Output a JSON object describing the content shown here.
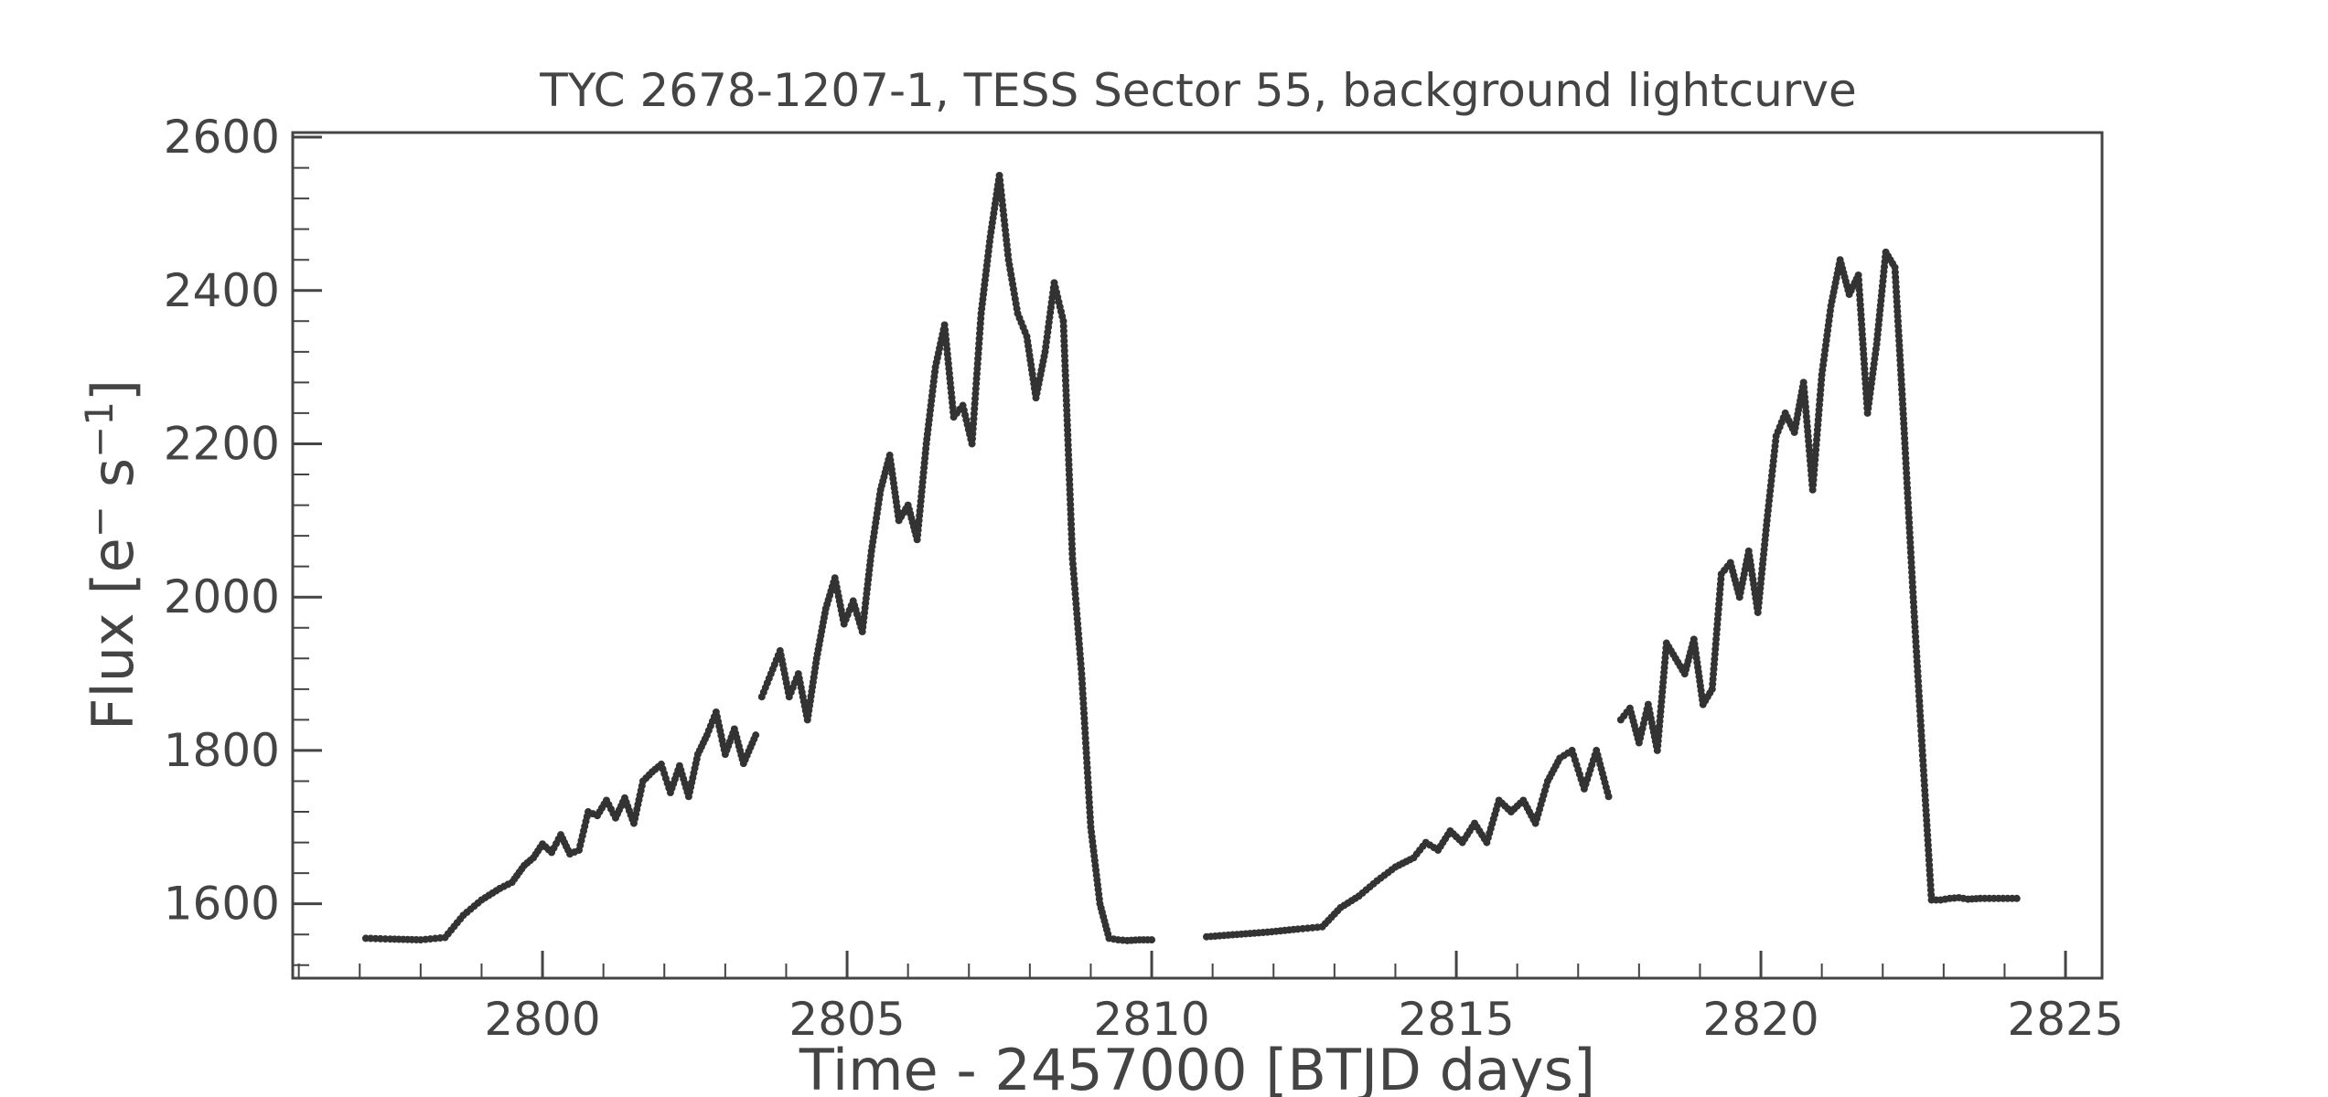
{
  "chart_data": {
    "type": "scatter",
    "title": "TYC 2678-1207-1, TESS Sector 55, background lightcurve",
    "xlabel": "Time - 2457000 [BTJD days]",
    "ylabel_text": "Flux [e",
    "ylabel_sup1": "−",
    "ylabel_mid": " s",
    "ylabel_sup2": "−1",
    "ylabel_end": "]",
    "xlim": [
      2795.9,
      2825.6
    ],
    "ylim": [
      1503,
      2606
    ],
    "xticks": [
      2800,
      2805,
      2810,
      2815,
      2820,
      2825
    ],
    "xtick_labels": [
      "2800",
      "2805",
      "2810",
      "2815",
      "2820",
      "2825"
    ],
    "yticks": [
      1600,
      1800,
      2000,
      2200,
      2400,
      2600
    ],
    "ytick_labels": [
      "1600",
      "1800",
      "2000",
      "2200",
      "2400",
      "2600"
    ],
    "grid": false,
    "marker_color": "#333333",
    "axis_color": "#444444",
    "series": [
      {
        "x": [
          2797.1,
          2797.5,
          2798.0,
          2798.4,
          2798.7,
          2799.0,
          2799.3,
          2799.5,
          2799.7,
          2799.85,
          2800.0,
          2800.15,
          2800.3,
          2800.45,
          2800.6,
          2800.75,
          2800.9,
          2801.05,
          2801.2,
          2801.35,
          2801.5,
          2801.65,
          2801.8,
          2801.95,
          2802.1,
          2802.25,
          2802.4,
          2802.55,
          2802.7,
          2802.85,
          2803.0,
          2803.15,
          2803.3,
          2803.5
        ],
        "y": [
          1555,
          1554,
          1553,
          1556,
          1585,
          1605,
          1620,
          1628,
          1650,
          1660,
          1678,
          1667,
          1690,
          1665,
          1670,
          1720,
          1715,
          1735,
          1712,
          1738,
          1705,
          1760,
          1772,
          1782,
          1745,
          1780,
          1740,
          1795,
          1820,
          1850,
          1795,
          1828,
          1783,
          1820
        ]
      },
      {
        "x": [
          2803.6,
          2803.75,
          2803.9,
          2804.05,
          2804.2,
          2804.35,
          2804.5,
          2804.65,
          2804.8,
          2804.95,
          2805.1,
          2805.25,
          2805.4,
          2805.55,
          2805.7,
          2805.85,
          2806.0,
          2806.15,
          2806.3,
          2806.45,
          2806.6,
          2806.75,
          2806.9,
          2807.05,
          2807.2,
          2807.35,
          2807.5,
          2807.65,
          2807.8,
          2807.95,
          2808.1,
          2808.25,
          2808.4,
          2808.55,
          2808.7,
          2808.85,
          2809.0,
          2809.15,
          2809.3,
          2809.45,
          2809.6,
          2809.8,
          2810.0
        ],
        "y": [
          1870,
          1900,
          1930,
          1870,
          1900,
          1840,
          1920,
          1985,
          2025,
          1965,
          1995,
          1955,
          2060,
          2140,
          2185,
          2100,
          2120,
          2075,
          2200,
          2300,
          2355,
          2235,
          2250,
          2200,
          2370,
          2470,
          2550,
          2440,
          2370,
          2340,
          2260,
          2320,
          2410,
          2360,
          2050,
          1900,
          1700,
          1600,
          1555,
          1553,
          1552,
          1553,
          1553
        ]
      },
      {
        "x": [
          2810.9,
          2811.4,
          2811.9,
          2812.4,
          2812.8,
          2813.1,
          2813.4,
          2813.7,
          2814.0,
          2814.3,
          2814.5,
          2814.7,
          2814.9,
          2815.1,
          2815.3,
          2815.5,
          2815.7,
          2815.9,
          2816.1,
          2816.3,
          2816.5,
          2816.7,
          2816.9,
          2817.1,
          2817.3,
          2817.5
        ],
        "y": [
          1557,
          1560,
          1563,
          1567,
          1570,
          1595,
          1610,
          1630,
          1648,
          1660,
          1680,
          1670,
          1695,
          1680,
          1705,
          1680,
          1735,
          1720,
          1735,
          1705,
          1760,
          1790,
          1800,
          1750,
          1800,
          1740
        ]
      },
      {
        "x": [
          2817.7,
          2817.85,
          2818.0,
          2818.15,
          2818.3,
          2818.45,
          2818.6,
          2818.75,
          2818.9,
          2819.05,
          2819.2,
          2819.35,
          2819.5,
          2819.65,
          2819.8,
          2819.95,
          2820.1,
          2820.25,
          2820.4,
          2820.55,
          2820.7,
          2820.85,
          2821.0,
          2821.15,
          2821.3,
          2821.45,
          2821.6,
          2821.75,
          2821.9,
          2822.05,
          2822.2,
          2822.35,
          2822.5,
          2822.65,
          2822.8,
          2822.95,
          2823.1,
          2823.25,
          2823.4,
          2823.6,
          2823.9,
          2824.2
        ],
        "y": [
          1840,
          1855,
          1810,
          1860,
          1800,
          1940,
          1920,
          1900,
          1945,
          1860,
          1880,
          2030,
          2045,
          2000,
          2060,
          1980,
          2100,
          2210,
          2240,
          2215,
          2280,
          2140,
          2290,
          2380,
          2440,
          2395,
          2420,
          2240,
          2330,
          2450,
          2430,
          2220,
          2000,
          1800,
          1605,
          1605,
          1607,
          1608,
          1606,
          1607,
          1607,
          1607
        ]
      }
    ]
  }
}
